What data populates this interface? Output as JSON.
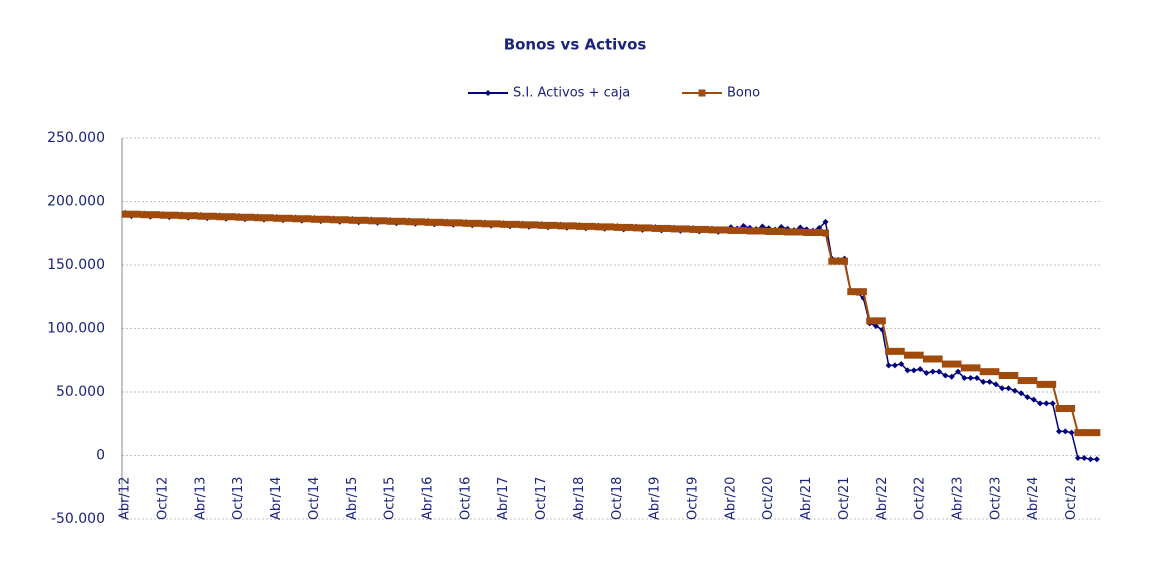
{
  "chart_data": {
    "type": "line",
    "title": "Bonos vs Activos",
    "categories": [
      "Abr/12",
      null,
      null,
      null,
      null,
      null,
      "Oct/12",
      null,
      null,
      null,
      null,
      null,
      "Abr/13",
      null,
      null,
      null,
      null,
      null,
      "Oct/13",
      null,
      null,
      null,
      null,
      null,
      "Abr/14",
      null,
      null,
      null,
      null,
      null,
      "Oct/14",
      null,
      null,
      null,
      null,
      null,
      "Abr/15",
      null,
      null,
      null,
      null,
      null,
      "Oct/15",
      null,
      null,
      null,
      null,
      null,
      "Abr/16",
      null,
      null,
      null,
      null,
      null,
      "Oct/16",
      null,
      null,
      null,
      null,
      null,
      "Abr/17",
      null,
      null,
      null,
      null,
      null,
      "Oct/17",
      null,
      null,
      null,
      null,
      null,
      "Abr/18",
      null,
      null,
      null,
      null,
      null,
      "Oct/18",
      null,
      null,
      null,
      null,
      null,
      "Abr/19",
      null,
      null,
      null,
      null,
      null,
      "Oct/19",
      null,
      null,
      null,
      null,
      null,
      "Abr/20",
      null,
      null,
      null,
      null,
      null,
      "Oct/20",
      null,
      null,
      null,
      null,
      null,
      "Abr/21",
      null,
      null,
      null,
      null,
      null,
      "Oct/21",
      null,
      null,
      null,
      null,
      null,
      "Abr/22",
      null,
      null,
      null,
      null,
      null,
      "Oct/22",
      null,
      null,
      null,
      null,
      null,
      "Abr/23",
      null,
      null,
      null,
      null,
      null,
      "Oct/23",
      null,
      null,
      null,
      null,
      null,
      "Abr/24",
      null,
      null,
      null,
      null,
      null,
      "Oct/24",
      null,
      null,
      null,
      null
    ],
    "series": [
      {
        "name": "S.I. Activos + caja",
        "color": "#000080",
        "marker": "diamond",
        "values": [
          191000,
          188500,
          190500,
          190600,
          188100,
          190100,
          190200,
          187700,
          189700,
          189800,
          187300,
          189300,
          189400,
          186900,
          188900,
          189000,
          186500,
          188500,
          188600,
          186100,
          188100,
          188200,
          185700,
          187700,
          187800,
          185300,
          187300,
          187400,
          184900,
          186900,
          187000,
          184500,
          186500,
          186600,
          184100,
          186100,
          186200,
          183700,
          185700,
          185800,
          183300,
          185300,
          185400,
          182900,
          184900,
          185000,
          182500,
          184500,
          184600,
          182100,
          184100,
          184200,
          181700,
          183700,
          183800,
          181300,
          183300,
          183400,
          180900,
          182900,
          183000,
          180500,
          182500,
          182600,
          180100,
          182100,
          182200,
          179700,
          181700,
          181800,
          179300,
          181300,
          181400,
          178900,
          180900,
          181000,
          178500,
          180500,
          180600,
          178100,
          180100,
          180200,
          177700,
          179700,
          179800,
          177300,
          179300,
          179400,
          176900,
          178900,
          179000,
          176500,
          178500,
          178600,
          176100,
          178100,
          179700,
          178700,
          180700,
          179300,
          178300,
          180300,
          178900,
          177900,
          179900,
          178500,
          177500,
          179500,
          178100,
          177100,
          179100,
          184000,
          155000,
          154000,
          155000,
          129000,
          128000,
          124000,
          104000,
          102000,
          99000,
          71000,
          71000,
          72000,
          67000,
          67000,
          68000,
          65000,
          66000,
          66000,
          63000,
          62000,
          66000,
          61000,
          61000,
          61000,
          58000,
          58000,
          56000,
          53000,
          53000,
          51000,
          49000,
          46000,
          44000,
          41000,
          41000,
          41000,
          19000,
          19000,
          18000,
          -2000,
          -2000,
          -3000,
          -3000
        ]
      },
      {
        "name": "Bono",
        "color": "#a04a0c",
        "marker": "square",
        "values": [
          190000,
          190000,
          190000,
          189600,
          189600,
          189600,
          189200,
          189200,
          189200,
          188800,
          188800,
          188800,
          188400,
          188400,
          188400,
          188000,
          188000,
          188000,
          187600,
          187600,
          187600,
          187200,
          187200,
          187200,
          186800,
          186800,
          186800,
          186400,
          186400,
          186400,
          186000,
          186000,
          186000,
          185600,
          185600,
          185600,
          185200,
          185200,
          185200,
          184800,
          184800,
          184800,
          184400,
          184400,
          184400,
          184000,
          184000,
          184000,
          183600,
          183600,
          183600,
          183200,
          183200,
          183200,
          182800,
          182800,
          182800,
          182400,
          182400,
          182400,
          182000,
          182000,
          182000,
          181600,
          181600,
          181600,
          181200,
          181200,
          181200,
          180800,
          180800,
          180800,
          180400,
          180400,
          180400,
          180000,
          180000,
          180000,
          179600,
          179600,
          179600,
          179200,
          179200,
          179200,
          178800,
          178800,
          178800,
          178400,
          178400,
          178400,
          178000,
          178000,
          178000,
          177600,
          177600,
          177600,
          177200,
          177200,
          177200,
          176800,
          176800,
          176800,
          176400,
          176400,
          176400,
          176000,
          176000,
          176000,
          175600,
          175600,
          175600,
          175200,
          153000,
          153000,
          153000,
          129000,
          129000,
          129000,
          106000,
          106000,
          106000,
          82000,
          82000,
          82000,
          79000,
          79000,
          79000,
          76000,
          76000,
          76000,
          72000,
          72000,
          72000,
          69000,
          69000,
          69000,
          66000,
          66000,
          66000,
          63000,
          63000,
          63000,
          59000,
          59000,
          59000,
          56000,
          56000,
          56000,
          37000,
          37000,
          37000,
          18000,
          18000,
          18000,
          18000
        ]
      }
    ],
    "ylim": [
      -50000,
      250000
    ],
    "yticks": [
      {
        "value": -50000,
        "label": "-50.000"
      },
      0,
      {
        "value": 50000,
        "label": "50.000"
      },
      {
        "value": 100000,
        "label": "100.000"
      },
      {
        "value": 150000,
        "label": "150.000"
      },
      {
        "value": 200000,
        "label": "200.000"
      },
      {
        "value": 250000,
        "label": "250.000"
      }
    ],
    "grid": true,
    "legend": "top"
  }
}
